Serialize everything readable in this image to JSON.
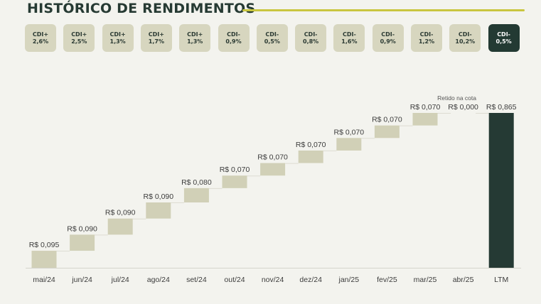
{
  "header": {
    "title": "HISTÓRICO DE RENDIMENTOS"
  },
  "badges": [
    {
      "line1": "CDI+",
      "line2": "2,6%"
    },
    {
      "line1": "CDI+",
      "line2": "2,5%"
    },
    {
      "line1": "CDI+",
      "line2": "1,3%"
    },
    {
      "line1": "CDI+",
      "line2": "1,7%"
    },
    {
      "line1": "CDI+",
      "line2": "1,3%"
    },
    {
      "line1": "CDI-",
      "line2": "0,9%"
    },
    {
      "line1": "CDI-",
      "line2": "0,5%"
    },
    {
      "line1": "CDI-",
      "line2": "0,8%"
    },
    {
      "line1": "CDI-",
      "line2": "1,6%"
    },
    {
      "line1": "CDI-",
      "line2": "0,9%"
    },
    {
      "line1": "CDI-",
      "line2": "1,2%"
    },
    {
      "line1": "CDI-",
      "line2": "10,2%"
    },
    {
      "line1": "CDI-",
      "line2": "0,5%",
      "active": true
    }
  ],
  "colors": {
    "bar": "#d1d0b7",
    "total_bar": "#253a34",
    "accent_rule": "#c9c63f",
    "title": "#263a33",
    "background": "#f3f3ee"
  },
  "chart_data": {
    "type": "bar",
    "subtype": "waterfall",
    "categories": [
      "mai/24",
      "jun/24",
      "jul/24",
      "ago/24",
      "set/24",
      "out/24",
      "nov/24",
      "dez/24",
      "jan/25",
      "fev/25",
      "mar/25",
      "abr/25",
      "LTM"
    ],
    "values": [
      0.095,
      0.09,
      0.09,
      0.09,
      0.08,
      0.07,
      0.07,
      0.07,
      0.07,
      0.07,
      0.07,
      0.0,
      0.865
    ],
    "labels": [
      "R$ 0,095",
      "R$ 0,090",
      "R$ 0,090",
      "R$ 0,090",
      "R$ 0,080",
      "R$ 0,070",
      "R$ 0,070",
      "R$ 0,070",
      "R$ 0,070",
      "R$ 0,070",
      "R$ 0,070",
      "R$ 0,000",
      "R$ 0,865"
    ],
    "total_index": 12,
    "annotation": {
      "text": "Retido na cota",
      "category": "abr/25"
    },
    "ylim": [
      0,
      0.865
    ],
    "grid": false,
    "legend": "none"
  }
}
